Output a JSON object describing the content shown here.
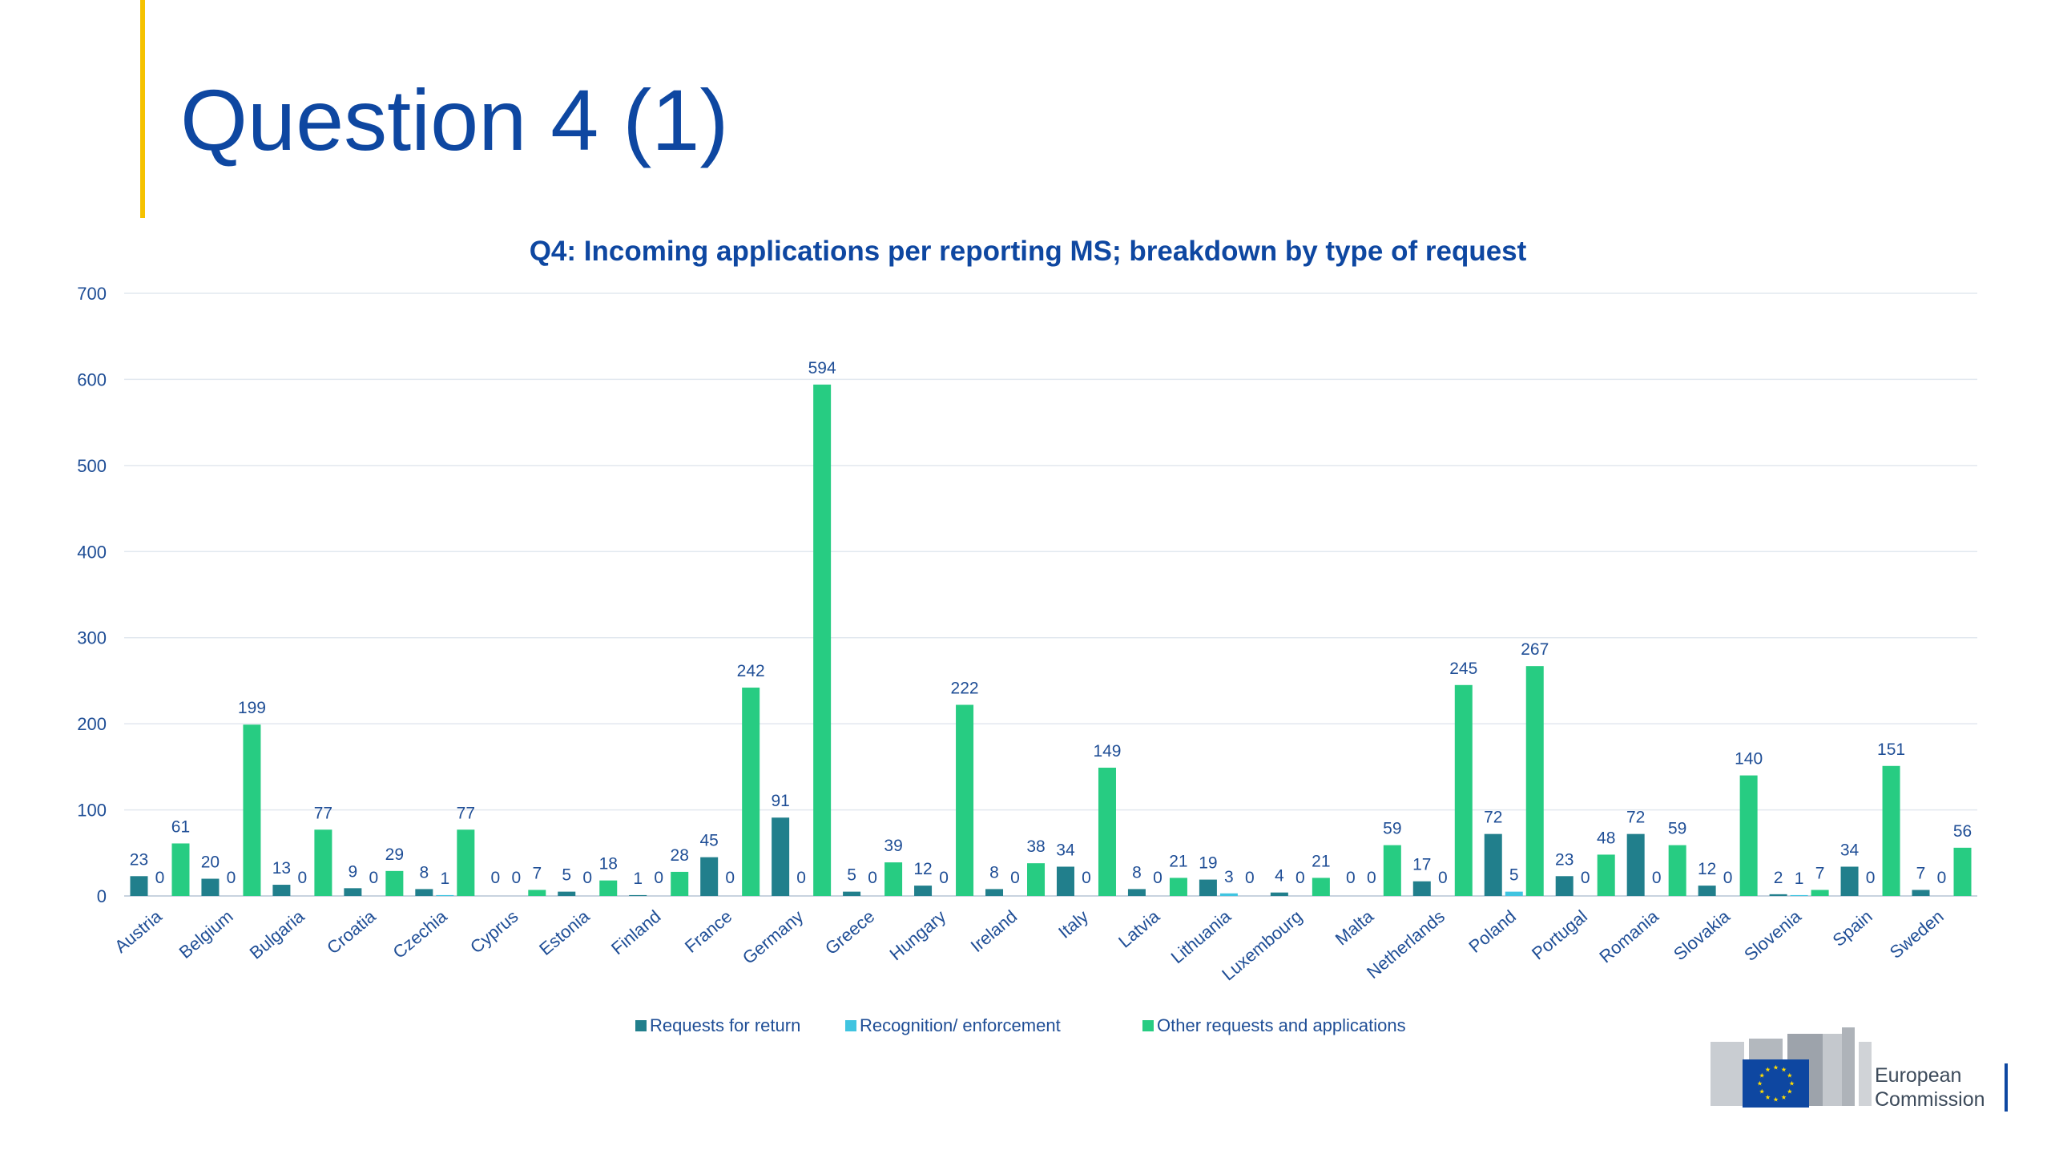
{
  "slide": {
    "title": "Question 4 (1)",
    "accent_color": "#f5c200",
    "title_color": "#0e47a1"
  },
  "chart_data": {
    "type": "bar",
    "title": "Q4: Incoming applications per reporting MS; breakdown by type of request",
    "xlabel": "",
    "ylabel": "",
    "ylim": [
      0,
      700
    ],
    "yticks": [
      0,
      100,
      200,
      300,
      400,
      500,
      600,
      700
    ],
    "grid": true,
    "legend_position": "bottom",
    "categories": [
      "Austria",
      "Belgium",
      "Bulgaria",
      "Croatia",
      "Czechia",
      "Cyprus",
      "Estonia",
      "Finland",
      "France",
      "Germany",
      "Greece",
      "Hungary",
      "Ireland",
      "Italy",
      "Latvia",
      "Lithuania",
      "Luxembourg",
      "Malta",
      "Netherlands",
      "Poland",
      "Portugal",
      "Romania",
      "Slovakia",
      "Slovenia",
      "Spain",
      "Sweden"
    ],
    "series": [
      {
        "name": "Requests for return",
        "color": "#217f8c",
        "values": [
          23,
          20,
          13,
          9,
          8,
          0,
          5,
          1,
          45,
          91,
          5,
          12,
          8,
          34,
          8,
          19,
          4,
          0,
          17,
          72,
          23,
          72,
          12,
          2,
          34,
          7
        ]
      },
      {
        "name": "Recognition/ enforcement",
        "color": "#40c4e0",
        "values": [
          0,
          0,
          0,
          0,
          1,
          0,
          0,
          0,
          0,
          0,
          0,
          0,
          0,
          0,
          0,
          3,
          0,
          0,
          0,
          5,
          0,
          0,
          0,
          1,
          0,
          0
        ]
      },
      {
        "name": "Other requests and applications",
        "color": "#27cc82",
        "values": [
          61,
          199,
          77,
          29,
          77,
          7,
          18,
          28,
          242,
          594,
          39,
          222,
          38,
          149,
          21,
          0,
          21,
          59,
          245,
          267,
          48,
          59,
          140,
          7,
          151,
          56
        ]
      }
    ],
    "data_labels": [
      [
        "23",
        "0",
        "61"
      ],
      [
        "20",
        "0",
        "199"
      ],
      [
        "13",
        "0",
        "77"
      ],
      [
        "9",
        "0",
        "29"
      ],
      [
        "8",
        "1",
        "77"
      ],
      [
        "0",
        "0",
        "7"
      ],
      [
        "5",
        "0",
        "18"
      ],
      [
        "1",
        "0",
        "28"
      ],
      [
        "45",
        "0",
        "242"
      ],
      [
        "91",
        "0",
        "594"
      ],
      [
        "5",
        "0",
        "39"
      ],
      [
        "12",
        "0",
        "222"
      ],
      [
        "8",
        "0",
        "38"
      ],
      [
        "34",
        "0",
        "149"
      ],
      [
        "8",
        "0",
        "21"
      ],
      [
        "19",
        "3",
        "0"
      ],
      [
        "4",
        "0",
        "21"
      ],
      [
        "0",
        "0",
        "59"
      ],
      [
        "17",
        "0",
        "245"
      ],
      [
        "72",
        "5",
        "267"
      ],
      [
        "23",
        "0",
        "48"
      ],
      [
        "72",
        "0",
        "59"
      ],
      [
        "12",
        "0",
        "140"
      ],
      [
        "2",
        "1",
        "7"
      ],
      [
        "34",
        "0",
        "151"
      ],
      [
        "7",
        "0",
        "56"
      ]
    ]
  },
  "branding": {
    "logo_line1": "European",
    "logo_line2": "Commission",
    "logo_colors": {
      "flag": "#0e47a1",
      "stars": "#ffdd00"
    }
  }
}
